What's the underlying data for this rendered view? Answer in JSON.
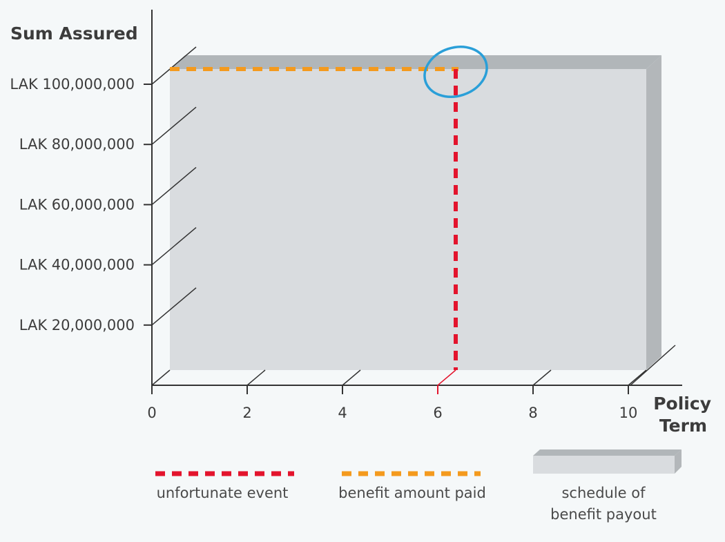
{
  "chart_data": {
    "type": "area",
    "y_axis_title": "Sum Assured",
    "x_axis_title_line1": "Policy",
    "x_axis_title_line2": "Term",
    "y_ticks": [
      {
        "value": 20000000,
        "label": "LAK 20,000,000"
      },
      {
        "value": 40000000,
        "label": "LAK 40,000,000"
      },
      {
        "value": 60000000,
        "label": "LAK 60,000,000"
      },
      {
        "value": 80000000,
        "label": "LAK 80,000,000"
      },
      {
        "value": 100000000,
        "label": "LAK 100,000,000"
      }
    ],
    "x_ticks": [
      {
        "value": 0,
        "label": "0",
        "highlight": false
      },
      {
        "value": 2,
        "label": "2",
        "highlight": false
      },
      {
        "value": 4,
        "label": "4",
        "highlight": false
      },
      {
        "value": 6,
        "label": "6",
        "highlight": true
      },
      {
        "value": 8,
        "label": "8",
        "highlight": false
      },
      {
        "value": 10,
        "label": "10",
        "highlight": false
      }
    ],
    "xlim": [
      0,
      10
    ],
    "ylim": [
      0,
      100000000
    ],
    "schedule_of_benefit_payout": {
      "x_start": 0,
      "x_end": 10,
      "sum_assured": 100000000
    },
    "unfortunate_event": {
      "x": 6
    },
    "benefit_amount_paid": {
      "value": 100000000,
      "x_start": 0,
      "x_end": 6
    },
    "legend": [
      {
        "label": "unfortunate event",
        "style": "red-dashed"
      },
      {
        "label": "benefit amount paid",
        "style": "orange-dashed"
      },
      {
        "label_line1": "schedule of",
        "label_line2": "benefit payout",
        "style": "grey-slab"
      }
    ],
    "legend_placement": "bottom"
  },
  "colors": {
    "event_red": "#e3142d",
    "benefit_orange": "#f49a1e",
    "slab_front": "#d9dcdf",
    "slab_top": "#b1b6b9",
    "slab_side": "#b3b7ba",
    "axis": "#333333",
    "highlight_circle": "#2a9fd8",
    "text": "#3c3c3c",
    "tick_highlight": "#e3142d"
  }
}
